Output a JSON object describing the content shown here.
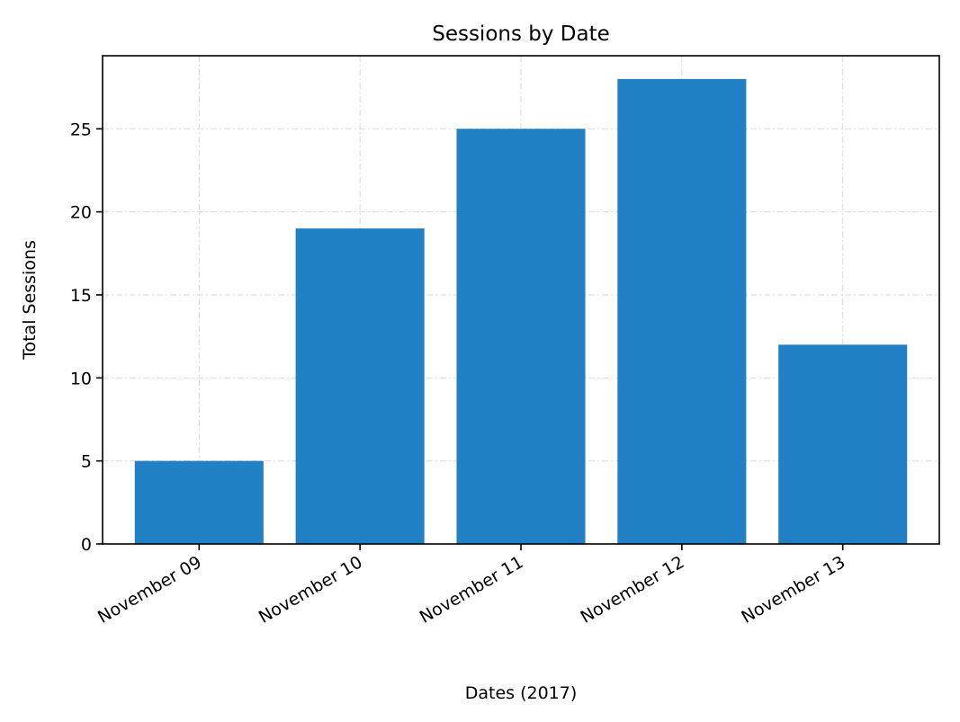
{
  "chart_data": {
    "type": "bar",
    "title": "Sessions by Date",
    "xlabel": "Dates (2017)",
    "ylabel": "Total Sessions",
    "categories": [
      "November 09",
      "November 10",
      "November 11",
      "November 12",
      "November 13"
    ],
    "values": [
      5,
      19,
      25,
      28,
      12
    ],
    "ylim": [
      0,
      29.4
    ],
    "yticks": [
      0,
      5,
      10,
      15,
      20,
      25
    ],
    "grid": true,
    "bar_color": "#2280c5",
    "x_tick_rotation": 30
  }
}
